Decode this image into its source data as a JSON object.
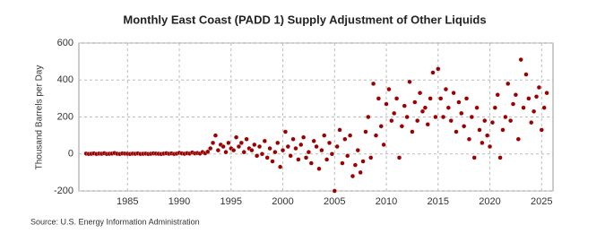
{
  "chart_data": {
    "type": "scatter",
    "title": "Monthly East Coast (PADD 1) Supply Adjustment of Other Liquids",
    "y_label": "Thousand Barrels per Day",
    "source": "Source: U.S. Energy Information Administration",
    "grid": true,
    "xlim": [
      1980.3,
      2026.1
    ],
    "xticks": [
      1985,
      1990,
      1995,
      2000,
      2005,
      2010,
      2015,
      2020,
      2025
    ],
    "ylim": [
      -200,
      600
    ],
    "yticks": [
      -200,
      0,
      200,
      400,
      600
    ],
    "series": [
      {
        "color": "#990000",
        "x": [
          1981,
          1981.25,
          1981.5,
          1981.75,
          1982,
          1982.25,
          1982.5,
          1982.75,
          1983,
          1983.25,
          1983.5,
          1983.75,
          1984,
          1984.25,
          1984.5,
          1984.75,
          1985,
          1985.25,
          1985.5,
          1985.75,
          1986,
          1986.25,
          1986.5,
          1986.75,
          1987,
          1987.25,
          1987.5,
          1987.75,
          1988,
          1988.25,
          1988.5,
          1988.75,
          1989,
          1989.25,
          1989.5,
          1989.75,
          1990,
          1990.25,
          1990.5,
          1990.75,
          1991,
          1991.25,
          1991.5,
          1991.75,
          1992,
          1992.25,
          1992.5,
          1992.75,
          1993,
          1993.25,
          1993.5,
          1993.75,
          1994,
          1994.25,
          1994.5,
          1994.75,
          1995,
          1995.25,
          1995.5,
          1995.75,
          1996,
          1996.25,
          1996.5,
          1996.75,
          1997,
          1997.25,
          1997.5,
          1997.75,
          1998,
          1998.25,
          1998.5,
          1998.75,
          1999,
          1999.25,
          1999.5,
          1999.75,
          2000,
          2000.25,
          2000.5,
          2000.75,
          2001,
          2001.25,
          2001.5,
          2001.75,
          2002,
          2002.25,
          2002.5,
          2002.75,
          2003,
          2003.25,
          2003.5,
          2003.75,
          2004,
          2004.25,
          2004.5,
          2004.75,
          2005,
          2005.25,
          2005.5,
          2005.75,
          2006,
          2006.25,
          2006.5,
          2006.75,
          2007,
          2007.25,
          2007.5,
          2007.75,
          2008,
          2008.25,
          2008.5,
          2008.75,
          2009,
          2009.25,
          2009.5,
          2009.75,
          2010,
          2010.25,
          2010.5,
          2010.75,
          2011,
          2011.25,
          2011.5,
          2011.75,
          2012,
          2012.25,
          2012.5,
          2012.75,
          2013,
          2013.25,
          2013.5,
          2013.75,
          2014,
          2014.25,
          2014.5,
          2014.75,
          2015,
          2015.25,
          2015.5,
          2015.75,
          2016,
          2016.25,
          2016.5,
          2016.75,
          2017,
          2017.25,
          2017.5,
          2017.75,
          2018,
          2018.25,
          2018.5,
          2018.75,
          2019,
          2019.25,
          2019.5,
          2019.75,
          2020,
          2020.25,
          2020.5,
          2020.75,
          2021,
          2021.25,
          2021.5,
          2021.75,
          2022,
          2022.25,
          2022.5,
          2022.75,
          2023,
          2023.25,
          2023.5,
          2023.75,
          2024,
          2024.25,
          2024.5,
          2024.75,
          2025,
          2025.25,
          2025.5
        ],
        "values": [
          2,
          0,
          1,
          3,
          0,
          2,
          1,
          4,
          0,
          1,
          2,
          5,
          1,
          0,
          3,
          2,
          1,
          0,
          2,
          1,
          3,
          0,
          1,
          2,
          0,
          1,
          3,
          2,
          1,
          0,
          2,
          4,
          1,
          3,
          0,
          2,
          6,
          3,
          1,
          4,
          2,
          8,
          3,
          5,
          2,
          10,
          4,
          12,
          30,
          60,
          100,
          20,
          50,
          40,
          10,
          60,
          30,
          20,
          90,
          40,
          60,
          10,
          80,
          30,
          20,
          50,
          -10,
          40,
          0,
          70,
          -20,
          30,
          -40,
          10,
          60,
          -70,
          20,
          120,
          40,
          -10,
          80,
          30,
          -30,
          50,
          90,
          -20,
          10,
          -50,
          70,
          40,
          -80,
          20,
          100,
          -30,
          60,
          0,
          -200,
          40,
          130,
          -50,
          80,
          -10,
          100,
          -120,
          -60,
          20,
          -100,
          -40,
          120,
          200,
          -20,
          380,
          100,
          300,
          150,
          50,
          270,
          350,
          180,
          220,
          300,
          -20,
          150,
          260,
          200,
          390,
          120,
          280,
          180,
          330,
          230,
          250,
          160,
          300,
          440,
          200,
          460,
          300,
          200,
          350,
          250,
          180,
          330,
          120,
          280,
          220,
          150,
          300,
          80,
          200,
          -20,
          250,
          130,
          60,
          180,
          100,
          40,
          170,
          250,
          320,
          -20,
          130,
          200,
          380,
          180,
          270,
          320,
          80,
          510,
          250,
          430,
          300,
          170,
          230,
          310,
          360,
          130,
          250,
          330
        ]
      }
    ]
  }
}
